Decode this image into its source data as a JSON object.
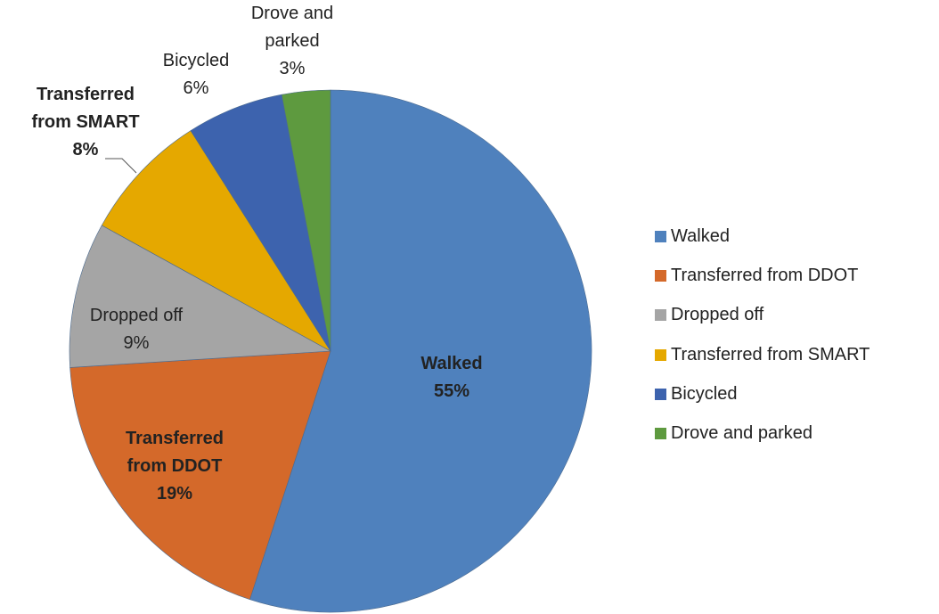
{
  "chart_data": {
    "type": "pie",
    "categories": [
      "Walked",
      "Transferred from DDOT",
      "Dropped off",
      "Transferred from SMART",
      "Bicycled",
      "Drove and parked"
    ],
    "values": [
      55,
      19,
      9,
      8,
      6,
      3
    ],
    "value_labels": [
      "55%",
      "19%",
      "9%",
      "8%",
      "6%",
      "3%"
    ],
    "colors": [
      "#4f81bd",
      "#d4692a",
      "#a5a5a5",
      "#e5a800",
      "#3d63ae",
      "#5e9a3f"
    ],
    "legend": "right"
  }
}
